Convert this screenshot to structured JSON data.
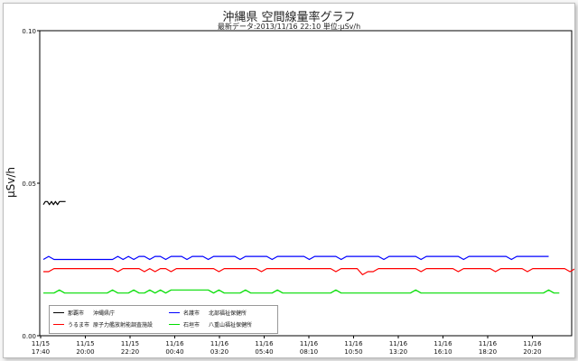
{
  "chart_data": {
    "type": "line",
    "title": "沖縄県 空間線量率グラフ",
    "subtitle": "最新データ:2013/11/16 22:10 単位:μSv/h",
    "xlabel": "",
    "ylabel": "μSv/h",
    "ylim": [
      0,
      0.1
    ],
    "yticks": [
      "0.00",
      "0.05",
      "0.10"
    ],
    "xticks": [
      {
        "date": "11/15",
        "time": "17:40"
      },
      {
        "date": "11/15",
        "time": "20:00"
      },
      {
        "date": "11/15",
        "time": "22:20"
      },
      {
        "date": "11/16",
        "time": "00:40"
      },
      {
        "date": "11/16",
        "time": "03:20"
      },
      {
        "date": "11/16",
        "time": "05:40"
      },
      {
        "date": "11/16",
        "time": "08:10"
      },
      {
        "date": "11/16",
        "time": "10:50"
      },
      {
        "date": "11/16",
        "time": "13:20"
      },
      {
        "date": "11/16",
        "time": "16:10"
      },
      {
        "date": "11/16",
        "time": "18:20"
      },
      {
        "date": "11/16",
        "time": "20:20"
      }
    ],
    "grid": false,
    "legend_position": "bottom-left",
    "series": [
      {
        "name": "那覇市 沖縄県庁",
        "city": "那覇市",
        "site": "沖縄県庁",
        "color": "#000000",
        "values": [
          0.043,
          0.044,
          0.044,
          0.043,
          0.044,
          0.043,
          0.044,
          0.043,
          0.044,
          0.044,
          0.044,
          0.044
        ]
      },
      {
        "name": "名護市 北部福祉保健所",
        "city": "名護市",
        "site": "北部福祉保健所",
        "color": "#0000ff",
        "values": [
          0.025,
          0.026,
          0.025,
          0.025,
          0.025,
          0.025,
          0.025,
          0.025,
          0.025,
          0.025,
          0.025,
          0.025,
          0.025,
          0.025,
          0.026,
          0.025,
          0.026,
          0.025,
          0.026,
          0.026,
          0.025,
          0.026,
          0.026,
          0.025,
          0.026,
          0.026,
          0.026,
          0.025,
          0.026,
          0.026,
          0.026,
          0.025,
          0.026,
          0.026,
          0.026,
          0.026,
          0.026,
          0.025,
          0.026,
          0.026,
          0.026,
          0.026,
          0.026,
          0.025,
          0.026,
          0.026,
          0.026,
          0.026,
          0.026,
          0.026,
          0.025,
          0.026,
          0.026,
          0.026,
          0.026,
          0.026,
          0.025,
          0.026,
          0.026,
          0.026,
          0.026,
          0.026,
          0.026,
          0.026,
          0.025,
          0.026,
          0.026,
          0.026,
          0.026,
          0.026,
          0.026,
          0.025,
          0.026,
          0.026,
          0.026,
          0.026,
          0.026,
          0.026,
          0.026,
          0.025,
          0.026,
          0.026,
          0.026,
          0.026,
          0.026,
          0.026,
          0.026,
          0.026,
          0.025,
          0.026,
          0.026,
          0.026,
          0.026,
          0.026,
          0.026,
          0.026
        ]
      },
      {
        "name": "うるま市 原子力艦放射能調査施設",
        "city": "うるま市",
        "site": "原子力艦放射能調査施設",
        "color": "#ff0000",
        "values": [
          0.021,
          0.021,
          0.022,
          0.022,
          0.022,
          0.022,
          0.022,
          0.022,
          0.022,
          0.022,
          0.022,
          0.022,
          0.022,
          0.022,
          0.021,
          0.022,
          0.022,
          0.022,
          0.022,
          0.021,
          0.022,
          0.021,
          0.022,
          0.022,
          0.021,
          0.022,
          0.022,
          0.022,
          0.022,
          0.022,
          0.022,
          0.022,
          0.022,
          0.021,
          0.022,
          0.022,
          0.022,
          0.022,
          0.022,
          0.022,
          0.022,
          0.021,
          0.022,
          0.022,
          0.022,
          0.022,
          0.022,
          0.022,
          0.022,
          0.022,
          0.022,
          0.022,
          0.022,
          0.022,
          0.022,
          0.021,
          0.022,
          0.022,
          0.022,
          0.022,
          0.02,
          0.021,
          0.021,
          0.022,
          0.022,
          0.022,
          0.022,
          0.022,
          0.022,
          0.022,
          0.022,
          0.021,
          0.022,
          0.022,
          0.022,
          0.022,
          0.022,
          0.022,
          0.021,
          0.022,
          0.022,
          0.022,
          0.022,
          0.022,
          0.022,
          0.021,
          0.022,
          0.022,
          0.022,
          0.022,
          0.022,
          0.021,
          0.022,
          0.022,
          0.022,
          0.022,
          0.022,
          0.022,
          0.022,
          0.021,
          0.022,
          0.022,
          0.022
        ]
      },
      {
        "name": "石垣市 八重山福祉保健所",
        "city": "石垣市",
        "site": "八重山福祉保健所",
        "color": "#00dd00",
        "values": [
          0.014,
          0.014,
          0.014,
          0.015,
          0.014,
          0.014,
          0.014,
          0.014,
          0.014,
          0.014,
          0.014,
          0.014,
          0.014,
          0.015,
          0.014,
          0.014,
          0.014,
          0.015,
          0.014,
          0.014,
          0.015,
          0.014,
          0.015,
          0.014,
          0.015,
          0.015,
          0.015,
          0.015,
          0.015,
          0.015,
          0.015,
          0.015,
          0.014,
          0.015,
          0.014,
          0.014,
          0.014,
          0.014,
          0.015,
          0.014,
          0.014,
          0.014,
          0.014,
          0.014,
          0.015,
          0.014,
          0.014,
          0.014,
          0.014,
          0.014,
          0.014,
          0.014,
          0.014,
          0.014,
          0.014,
          0.015,
          0.014,
          0.014,
          0.014,
          0.014,
          0.014,
          0.014,
          0.014,
          0.014,
          0.014,
          0.014,
          0.014,
          0.014,
          0.014,
          0.014,
          0.015,
          0.014,
          0.014,
          0.014,
          0.014,
          0.014,
          0.014,
          0.014,
          0.014,
          0.014,
          0.014,
          0.014,
          0.014,
          0.014,
          0.014,
          0.014,
          0.014,
          0.014,
          0.014,
          0.014,
          0.014,
          0.014,
          0.014,
          0.014,
          0.014,
          0.015,
          0.014,
          0.014
        ]
      }
    ]
  }
}
